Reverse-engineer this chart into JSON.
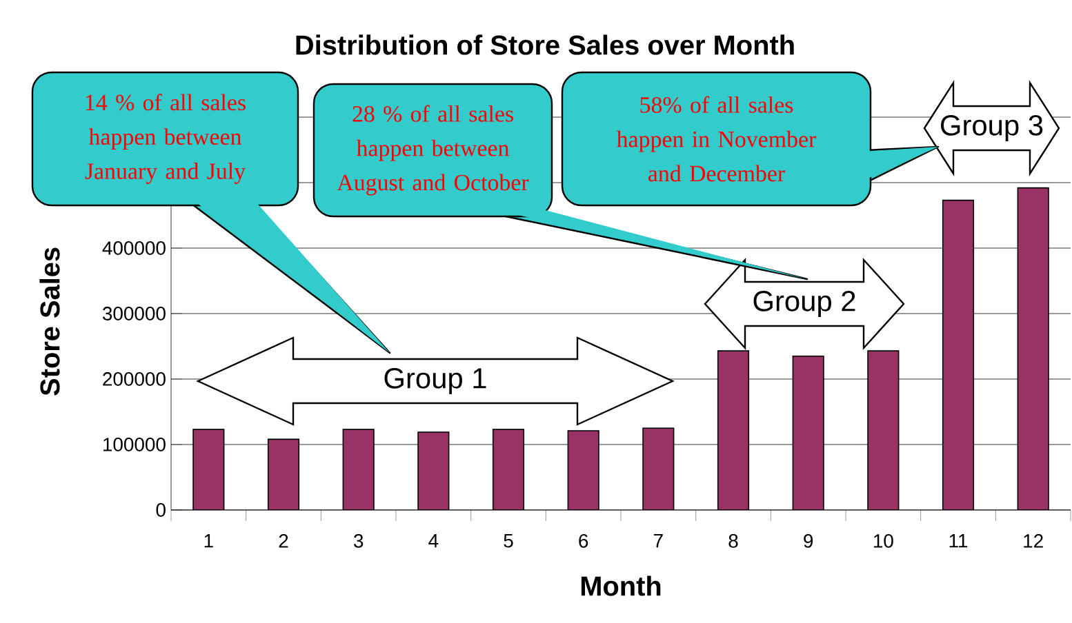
{
  "chart_data": {
    "type": "bar",
    "title": "Distribution of Store Sales over Month",
    "xlabel": "Month",
    "ylabel": "Store Sales",
    "categories": [
      "1",
      "2",
      "3",
      "4",
      "5",
      "6",
      "7",
      "8",
      "9",
      "10",
      "11",
      "12"
    ],
    "values": [
      123000,
      108000,
      123000,
      119000,
      123000,
      121000,
      125000,
      243000,
      235000,
      243000,
      473000,
      492000
    ],
    "color": "#993366",
    "ylim": [
      0,
      600000
    ],
    "yticks": [
      0,
      100000,
      200000,
      300000,
      400000,
      {
        "value": 500000,
        "label": null
      },
      {
        "value": 600000,
        "label": null
      }
    ],
    "grid": "y",
    "annotations": [
      "14 % of all sales happen between January and July",
      "28 % of all sales happen between August and October",
      "58% of all sales happen in November and December",
      "Group 1",
      "Group 2",
      "Group 3"
    ]
  }
}
